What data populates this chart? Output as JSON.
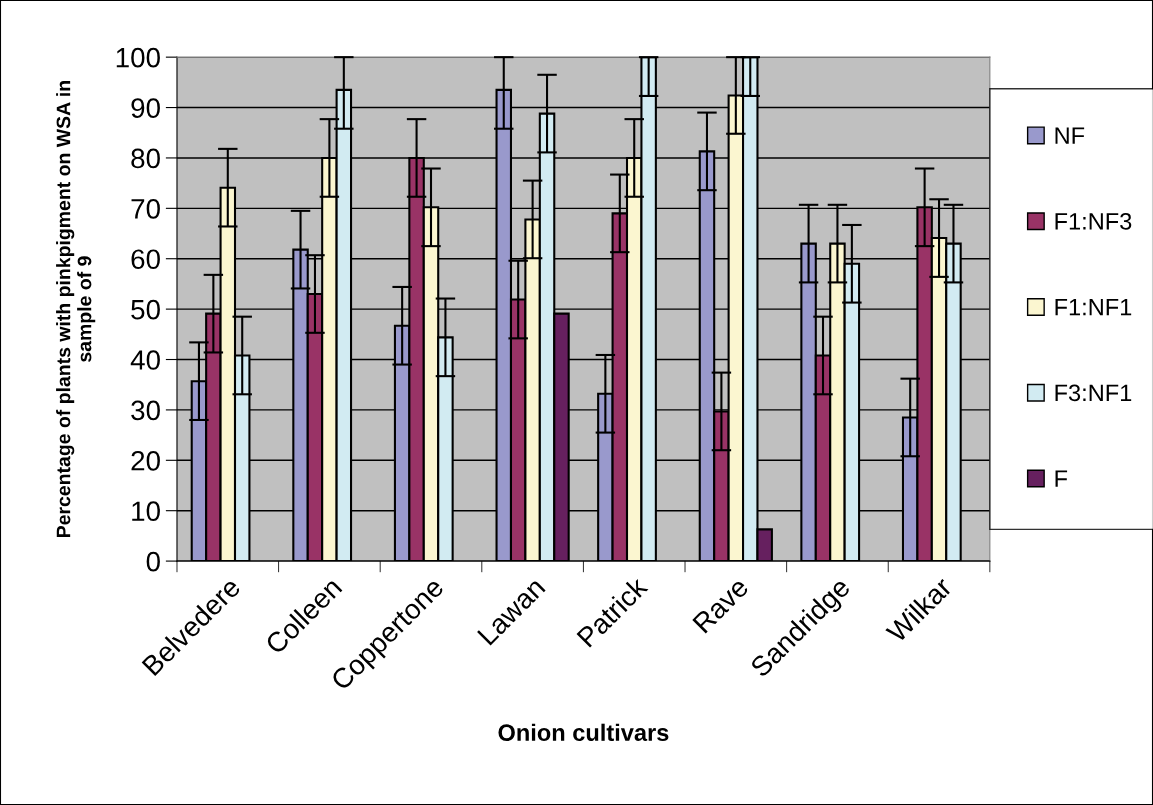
{
  "chart_data": {
    "type": "bar",
    "xlabel": "Onion cultivars",
    "ylabel": "Percentage of plants with pinkpigment on WSA in\nsample of 9",
    "categories": [
      "Belvedere",
      "Colleen",
      "Coppertone",
      "Lawan",
      "Patrick",
      "Rave",
      "Sandridge",
      "Wilkar"
    ],
    "series": [
      {
        "name": "NF",
        "color": "#9999cc",
        "values": [
          35.7,
          61.8,
          46.7,
          93.5,
          33.2,
          81.3,
          63.0,
          28.5
        ],
        "errors": [
          7.7,
          7.7,
          7.7,
          [
            85.8,
            100
          ],
          7.7,
          7.7,
          7.7,
          7.7
        ]
      },
      {
        "name": "F1:NF3",
        "color": "#993366",
        "values": [
          49.1,
          53.0,
          80.0,
          51.9,
          69.0,
          29.7,
          40.8,
          70.2
        ],
        "errors": [
          7.7,
          7.7,
          7.7,
          7.7,
          7.7,
          7.7,
          7.7,
          7.7
        ]
      },
      {
        "name": "F1:NF1",
        "color": "#fbf6d0",
        "values": [
          74.1,
          80.0,
          70.2,
          67.8,
          80.0,
          92.4,
          63.0,
          64.1
        ],
        "errors": [
          7.7,
          7.7,
          7.7,
          7.7,
          7.7,
          7.6,
          7.7,
          7.7
        ]
      },
      {
        "name": "F3:NF1",
        "color": "#d2ebf2",
        "values": [
          40.8,
          93.5,
          44.4,
          88.8,
          100,
          100,
          59.0,
          63.0
        ],
        "errors": [
          7.7,
          [
            85.8,
            100
          ],
          7.7,
          7.7,
          [
            92.3,
            100
          ],
          [
            92.3,
            100
          ],
          7.7,
          7.7
        ]
      },
      {
        "name": "F",
        "color": "#66205f",
        "values": [
          null,
          null,
          null,
          49.1,
          null,
          6.3,
          null,
          null
        ]
      }
    ],
    "ylim": [
      0,
      100
    ],
    "yticks": [
      0,
      10,
      20,
      30,
      40,
      50,
      60,
      70,
      80,
      90,
      100
    ],
    "grid": "y",
    "legend": "right"
  }
}
